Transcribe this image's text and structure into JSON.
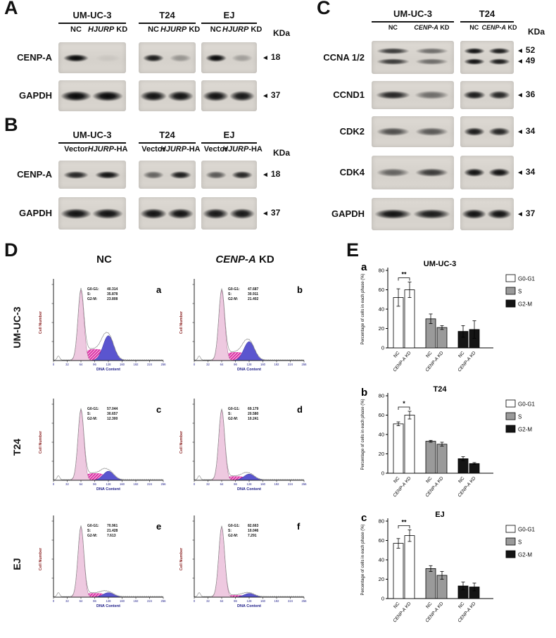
{
  "colors": {
    "blot_bg": "#d8d4ce",
    "g1_peak_fill": "#eec9e0",
    "g1_peak_stroke": "#a86a92",
    "s_phase_fill": "#d6189c",
    "s_phase_light": "#f3a8d8",
    "g2_peak_fill": "#5a55cf",
    "g2_peak_stroke": "#39349f",
    "outline": "#8f8f8f",
    "x_axis_text": "#20208a",
    "y_axis_text": "#8a2020",
    "bar_g0g1": "#ffffff",
    "bar_s": "#9a9a9a",
    "bar_g2m": "#141414"
  },
  "panels": {
    "a": {
      "letter": "A",
      "kda_header": "KDa",
      "groups": [
        {
          "name": "UM-UC-3",
          "lanes": [
            {
              "plain": "NC"
            },
            {
              "italic": "HJURP",
              "plain": " KD"
            }
          ]
        },
        {
          "name": "T24",
          "lanes": [
            {
              "plain": "NC"
            },
            {
              "italic": "HJURP",
              "plain": " KD"
            }
          ]
        },
        {
          "name": "EJ",
          "lanes": [
            {
              "plain": "NC"
            },
            {
              "italic": "HJURP",
              "plain": " KD"
            }
          ]
        }
      ],
      "rows": [
        {
          "protein": "CENP-A",
          "kda": [
            "18"
          ],
          "band_height": 11,
          "band_width": 0.38,
          "bands": [
            [
              1,
              0.05
            ],
            [
              0.9,
              0.3
            ],
            [
              1,
              0.25
            ]
          ]
        },
        {
          "protein": "GAPDH",
          "kda": [
            "37"
          ],
          "band_height": 15,
          "band_width": 0.46,
          "bands": [
            [
              1,
              1
            ],
            [
              0.95,
              0.95
            ],
            [
              0.95,
              0.92
            ]
          ]
        }
      ]
    },
    "b": {
      "letter": "B",
      "kda_header": "KDa",
      "groups": [
        {
          "name": "UM-UC-3",
          "lanes": [
            {
              "plain": "Vector"
            },
            {
              "italic": "HJURP",
              "plain": "-HA"
            }
          ]
        },
        {
          "name": "T24",
          "lanes": [
            {
              "plain": "Vector"
            },
            {
              "italic": "HJURP",
              "plain": "-HA"
            }
          ]
        },
        {
          "name": "EJ",
          "lanes": [
            {
              "plain": "Vector"
            },
            {
              "italic": "HJURP",
              "plain": "-HA"
            }
          ]
        }
      ],
      "rows": [
        {
          "protein": "CENP-A",
          "kda": [
            "18"
          ],
          "band_height": 11,
          "band_width": 0.38,
          "bands": [
            [
              0.85,
              0.95
            ],
            [
              0.55,
              0.9
            ],
            [
              0.6,
              0.85
            ]
          ]
        },
        {
          "protein": "GAPDH",
          "kda": [
            "37"
          ],
          "band_height": 15,
          "band_width": 0.46,
          "bands": [
            [
              0.95,
              0.95
            ],
            [
              0.95,
              0.95
            ],
            [
              0.92,
              0.92
            ]
          ]
        }
      ]
    },
    "c": {
      "letter": "C",
      "kda_header": "KDa",
      "groups": [
        {
          "name": "UM-UC-3",
          "lanes": [
            {
              "plain": "NC"
            },
            {
              "italic": "CENP-A",
              "plain": " KD"
            }
          ]
        },
        {
          "name": "T24",
          "lanes": [
            {
              "plain": "NC"
            },
            {
              "italic": "CENP-A",
              "plain": " KD"
            }
          ]
        }
      ],
      "rows": [
        {
          "protein": "CCNA 1/2",
          "kda": [
            "52",
            "49"
          ],
          "double": true,
          "band_height": 9,
          "band_width": 0.4,
          "bands": [
            [
              0.75,
              0.5
            ],
            [
              0.95,
              0.9
            ]
          ]
        },
        {
          "protein": "CCND1",
          "kda": [
            "36"
          ],
          "band_height": 12,
          "band_width": 0.42,
          "bands": [
            [
              0.85,
              0.5
            ],
            [
              0.9,
              0.85
            ]
          ]
        },
        {
          "protein": "CDK2",
          "kda": [
            "34"
          ],
          "band_height": 12,
          "band_width": 0.4,
          "bands": [
            [
              0.65,
              0.6
            ],
            [
              0.9,
              0.85
            ]
          ]
        },
        {
          "protein": "CDK4",
          "kda": [
            "34"
          ],
          "band_height": 12,
          "band_width": 0.4,
          "bands": [
            [
              0.55,
              0.75
            ],
            [
              0.95,
              0.95
            ]
          ]
        },
        {
          "protein": "GAPDH",
          "kda": [
            "37"
          ],
          "band_height": 14,
          "band_width": 0.46,
          "bands": [
            [
              0.95,
              0.9
            ],
            [
              0.95,
              0.95
            ]
          ]
        }
      ]
    },
    "d": {
      "letter": "D",
      "col_headers": [
        {
          "plain": "NC"
        },
        {
          "italic": "CENP-A",
          "plain": " KD"
        }
      ],
      "stat_labels": {
        "g0g1": "G0-G1:",
        "s": "S:",
        "g2m": "G2-M:"
      },
      "xlabel": "DNA Content",
      "ylabel": "Cell Number",
      "x_ticks": [
        "0",
        "32",
        "64",
        "96",
        "128",
        "160",
        "192",
        "224",
        "256"
      ],
      "rows": [
        {
          "cell_line": "UM-UC-3",
          "plots": [
            {
              "letter": "a",
              "stats": {
                "g0g1": "40.314",
                "s": "35.878",
                "g2m": "23.808"
              }
            },
            {
              "letter": "b",
              "stats": {
                "g0g1": "47.687",
                "s": "30.911",
                "g2m": "21.402"
              }
            }
          ]
        },
        {
          "cell_line": "T24",
          "plots": [
            {
              "letter": "c",
              "stats": {
                "g0g1": "57.044",
                "s": "30.657",
                "g2m": "12.300"
              }
            },
            {
              "letter": "d",
              "stats": {
                "g0g1": "69.179",
                "s": "20.580",
                "g2m": "10.241"
              }
            }
          ]
        },
        {
          "cell_line": "EJ",
          "plots": [
            {
              "letter": "e",
              "stats": {
                "g0g1": "70.961",
                "s": "21.428",
                "g2m": "7.613"
              }
            },
            {
              "letter": "f",
              "stats": {
                "g0g1": "82.663",
                "s": "10.046",
                "g2m": "7.291"
              }
            }
          ]
        }
      ]
    },
    "e": {
      "letter": "E",
      "ylabel": "Percentage of cells in each phase (%)",
      "ylim": [
        0,
        80
      ],
      "yticks": [
        0,
        20,
        40,
        60,
        80
      ],
      "legend": [
        {
          "label": "G0-G1",
          "fill": "#ffffff"
        },
        {
          "label": "S",
          "fill": "#9a9a9a"
        },
        {
          "label": "G2-M",
          "fill": "#141414"
        }
      ],
      "x_group_labels": [
        {
          "plain": "NC"
        },
        {
          "italic": "CENP-A",
          "plain": " KD"
        }
      ],
      "charts": [
        {
          "letter": "a",
          "title": "UM-UC-3",
          "significance": "**",
          "phases": [
            {
              "phase": "G0-G1",
              "nc": 52,
              "nc_err": 9,
              "kd": 60,
              "kd_err": 8
            },
            {
              "phase": "S",
              "nc": 30,
              "nc_err": 5,
              "kd": 21,
              "kd_err": 2
            },
            {
              "phase": "G2-M",
              "nc": 17,
              "nc_err": 6,
              "kd": 19,
              "kd_err": 9
            }
          ]
        },
        {
          "letter": "b",
          "title": "T24",
          "significance": "*",
          "phases": [
            {
              "phase": "G0-G1",
              "nc": 51,
              "nc_err": 2,
              "kd": 60,
              "kd_err": 4
            },
            {
              "phase": "S",
              "nc": 33,
              "nc_err": 1,
              "kd": 30,
              "kd_err": 2
            },
            {
              "phase": "G2-M",
              "nc": 15,
              "nc_err": 2,
              "kd": 10,
              "kd_err": 1
            }
          ]
        },
        {
          "letter": "c",
          "title": "EJ",
          "significance": "**",
          "phases": [
            {
              "phase": "G0-G1",
              "nc": 57,
              "nc_err": 5,
              "kd": 65,
              "kd_err": 6
            },
            {
              "phase": "S",
              "nc": 31,
              "nc_err": 3,
              "kd": 24,
              "kd_err": 4
            },
            {
              "phase": "G2-M",
              "nc": 13,
              "nc_err": 4,
              "kd": 12,
              "kd_err": 4
            }
          ]
        }
      ]
    }
  }
}
